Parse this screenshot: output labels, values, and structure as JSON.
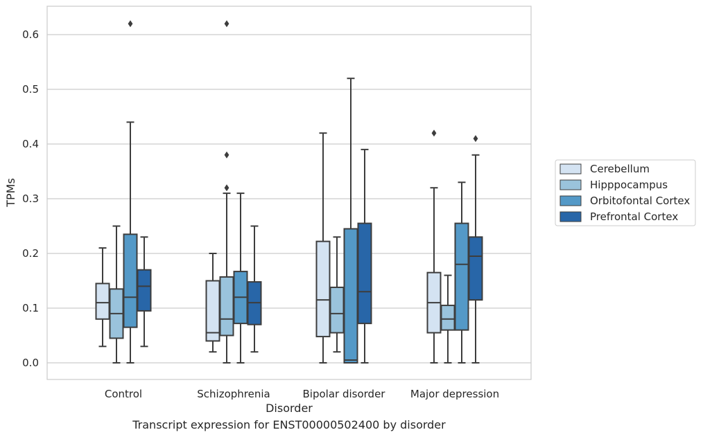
{
  "chart_data": {
    "type": "box",
    "title": "",
    "caption": "Transcript expression for ENST00000502400 by disorder",
    "xlabel": "Disorder",
    "ylabel": "TPMs",
    "ylim": [
      -0.03,
      0.655
    ],
    "yticks": [
      0.0,
      0.1,
      0.2,
      0.3,
      0.4,
      0.5,
      0.6
    ],
    "ytick_labels": [
      "0.0",
      "0.1",
      "0.2",
      "0.3",
      "0.4",
      "0.5",
      "0.6"
    ],
    "grid": "horizontal",
    "legend_placement": "right",
    "categories": [
      "Control",
      "Schizophrenia",
      "Bipolar disorder",
      "Major depression"
    ],
    "series": [
      {
        "name": "Cerebellum",
        "color": "#d4e3f2",
        "boxes": [
          {
            "whislo": 0.03,
            "q1": 0.08,
            "med": 0.11,
            "q3": 0.145,
            "whishi": 0.21,
            "fliers": []
          },
          {
            "whislo": 0.02,
            "q1": 0.04,
            "med": 0.055,
            "q3": 0.15,
            "whishi": 0.2,
            "fliers": []
          },
          {
            "whislo": 0.0,
            "q1": 0.048,
            "med": 0.115,
            "q3": 0.222,
            "whishi": 0.42,
            "fliers": []
          },
          {
            "whislo": 0.0,
            "q1": 0.055,
            "med": 0.11,
            "q3": 0.165,
            "whishi": 0.32,
            "fliers": [
              0.42
            ]
          }
        ]
      },
      {
        "name": "Hipppocampus",
        "color": "#9ac3dc",
        "boxes": [
          {
            "whislo": 0.0,
            "q1": 0.045,
            "med": 0.09,
            "q3": 0.135,
            "whishi": 0.25,
            "fliers": []
          },
          {
            "whislo": 0.0,
            "q1": 0.05,
            "med": 0.08,
            "q3": 0.157,
            "whishi": 0.31,
            "fliers": [
              0.32,
              0.38,
              0.62
            ]
          },
          {
            "whislo": 0.02,
            "q1": 0.055,
            "med": 0.09,
            "q3": 0.138,
            "whishi": 0.23,
            "fliers": []
          },
          {
            "whislo": 0.0,
            "q1": 0.06,
            "med": 0.08,
            "q3": 0.105,
            "whishi": 0.16,
            "fliers": []
          }
        ]
      },
      {
        "name": "Orbitofontal Cortex",
        "color": "#5499c7",
        "boxes": [
          {
            "whislo": 0.0,
            "q1": 0.065,
            "med": 0.12,
            "q3": 0.235,
            "whishi": 0.44,
            "fliers": [
              0.62
            ]
          },
          {
            "whislo": 0.0,
            "q1": 0.072,
            "med": 0.12,
            "q3": 0.167,
            "whishi": 0.31,
            "fliers": []
          },
          {
            "whislo": 0.0,
            "q1": 0.0,
            "med": 0.005,
            "q3": 0.245,
            "whishi": 0.52,
            "fliers": []
          },
          {
            "whislo": 0.0,
            "q1": 0.06,
            "med": 0.18,
            "q3": 0.255,
            "whishi": 0.33,
            "fliers": []
          }
        ]
      },
      {
        "name": "Prefrontal Cortex",
        "color": "#2866a8",
        "boxes": [
          {
            "whislo": 0.03,
            "q1": 0.095,
            "med": 0.14,
            "q3": 0.17,
            "whishi": 0.23,
            "fliers": []
          },
          {
            "whislo": 0.02,
            "q1": 0.07,
            "med": 0.11,
            "q3": 0.148,
            "whishi": 0.25,
            "fliers": []
          },
          {
            "whislo": 0.0,
            "q1": 0.072,
            "med": 0.13,
            "q3": 0.255,
            "whishi": 0.39,
            "fliers": []
          },
          {
            "whislo": 0.0,
            "q1": 0.115,
            "med": 0.195,
            "q3": 0.23,
            "whishi": 0.38,
            "fliers": [
              0.41
            ]
          }
        ]
      }
    ]
  }
}
